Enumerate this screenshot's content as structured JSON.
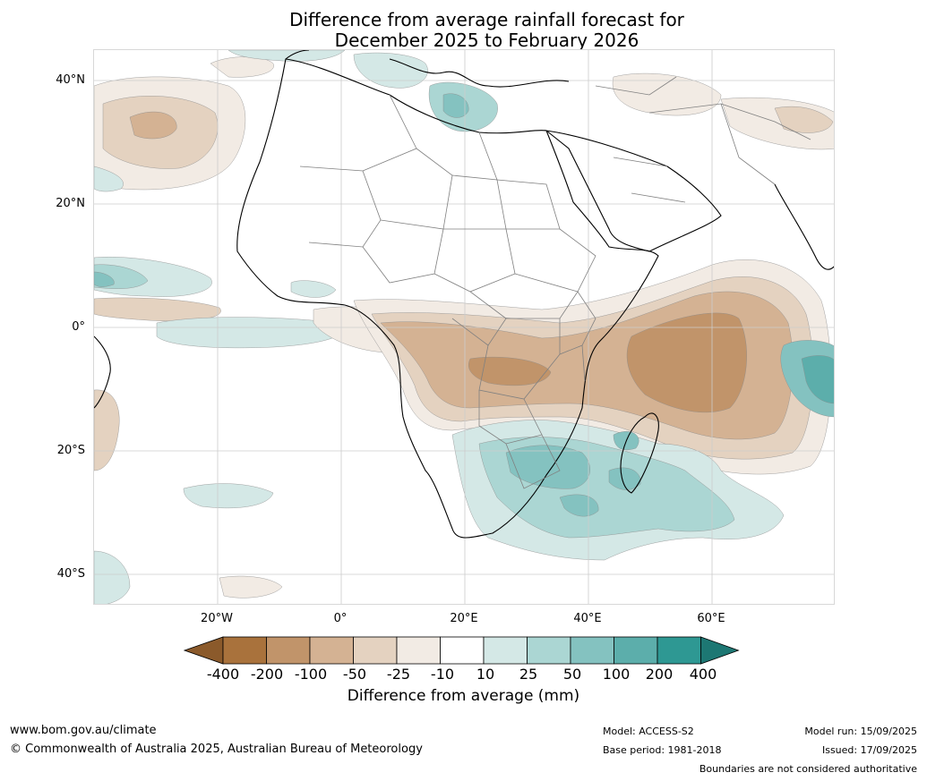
{
  "title": {
    "line1": "Difference from average rainfall forecast for",
    "line2": "December 2025 to February 2026"
  },
  "map": {
    "region": "Africa",
    "lat_labels": [
      "40°N",
      "20°N",
      "0°",
      "20°S",
      "40°S"
    ],
    "lon_labels": [
      "20°W",
      "0°",
      "20°E",
      "40°E",
      "60°E"
    ],
    "colors": {
      "land": "#ffffff",
      "coast": "#000000",
      "borders": "#808080",
      "grid": "#cccccc"
    }
  },
  "legend": {
    "labels": [
      "-400",
      "-200",
      "-100",
      "-50",
      "-25",
      "-10",
      "10",
      "25",
      "50",
      "100",
      "200",
      "400"
    ],
    "colors": [
      "#8b5a2b",
      "#a9723c",
      "#c1946a",
      "#d4b293",
      "#e4d2c0",
      "#f2ebe4",
      "#ffffff",
      "#d4e8e6",
      "#abd6d3",
      "#84c2c0",
      "#5caeab",
      "#2e9893",
      "#1d7773"
    ],
    "title": "Difference from average (mm)"
  },
  "footer": {
    "website": "www.bom.gov.au/climate",
    "copyright": "© Commonwealth of Australia 2025, Australian Bureau of Meteorology",
    "model": "Model: ACCESS-S2",
    "base_period": "Base period: 1981-2018",
    "model_run": "Model run: 15/09/2025",
    "issued": "Issued: 17/09/2025",
    "disclaimer": "Boundaries are not considered authoritative"
  }
}
